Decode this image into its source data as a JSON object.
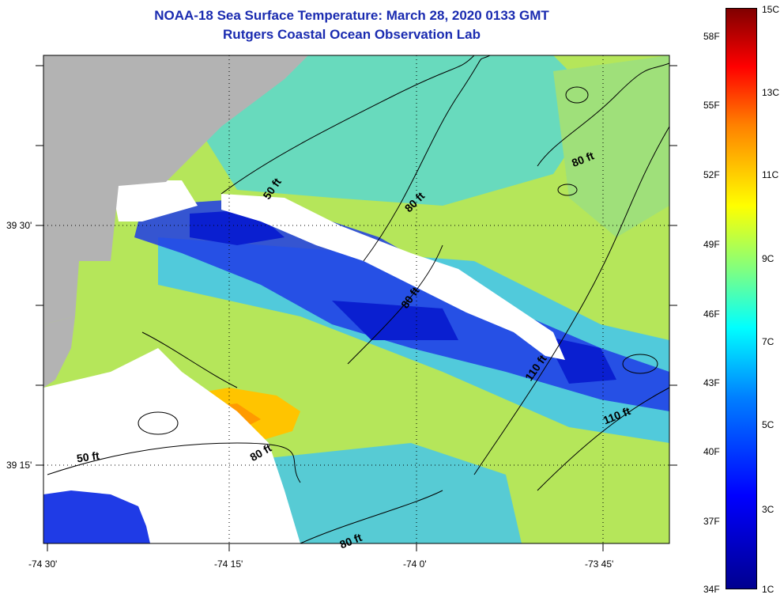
{
  "title": {
    "line1": "NOAA-18 Sea Surface Temperature:  March 28, 2020 0133 GMT",
    "line2": "Rutgers Coastal Ocean Observation Lab"
  },
  "map": {
    "lat_labels": [
      "39 30'",
      "39 15'"
    ],
    "lon_labels": [
      "-74 30'",
      "-74 15'",
      "-74 0'",
      "-73 45'"
    ],
    "contour_labels": [
      "50 ft",
      "80 ft",
      "80 ft",
      "80 ft",
      "80 ft",
      "110 ft",
      "110 ft",
      "80 ft",
      "50 ft"
    ],
    "colors": {
      "land": "#b3b3b3",
      "no_data": "#ffffff",
      "cold_water": "#1f3be6",
      "mid_water": "#33ccf0",
      "warm_water": "#b5e65a",
      "warmest_water": "#ffc400"
    }
  },
  "colorbar": {
    "fahrenheit": [
      "58F",
      "55F",
      "52F",
      "49F",
      "46F",
      "43F",
      "40F",
      "37F",
      "34F"
    ],
    "celsius": [
      "15C",
      "13C",
      "11C",
      "9C",
      "7C",
      "5C",
      "3C",
      "1C"
    ]
  }
}
